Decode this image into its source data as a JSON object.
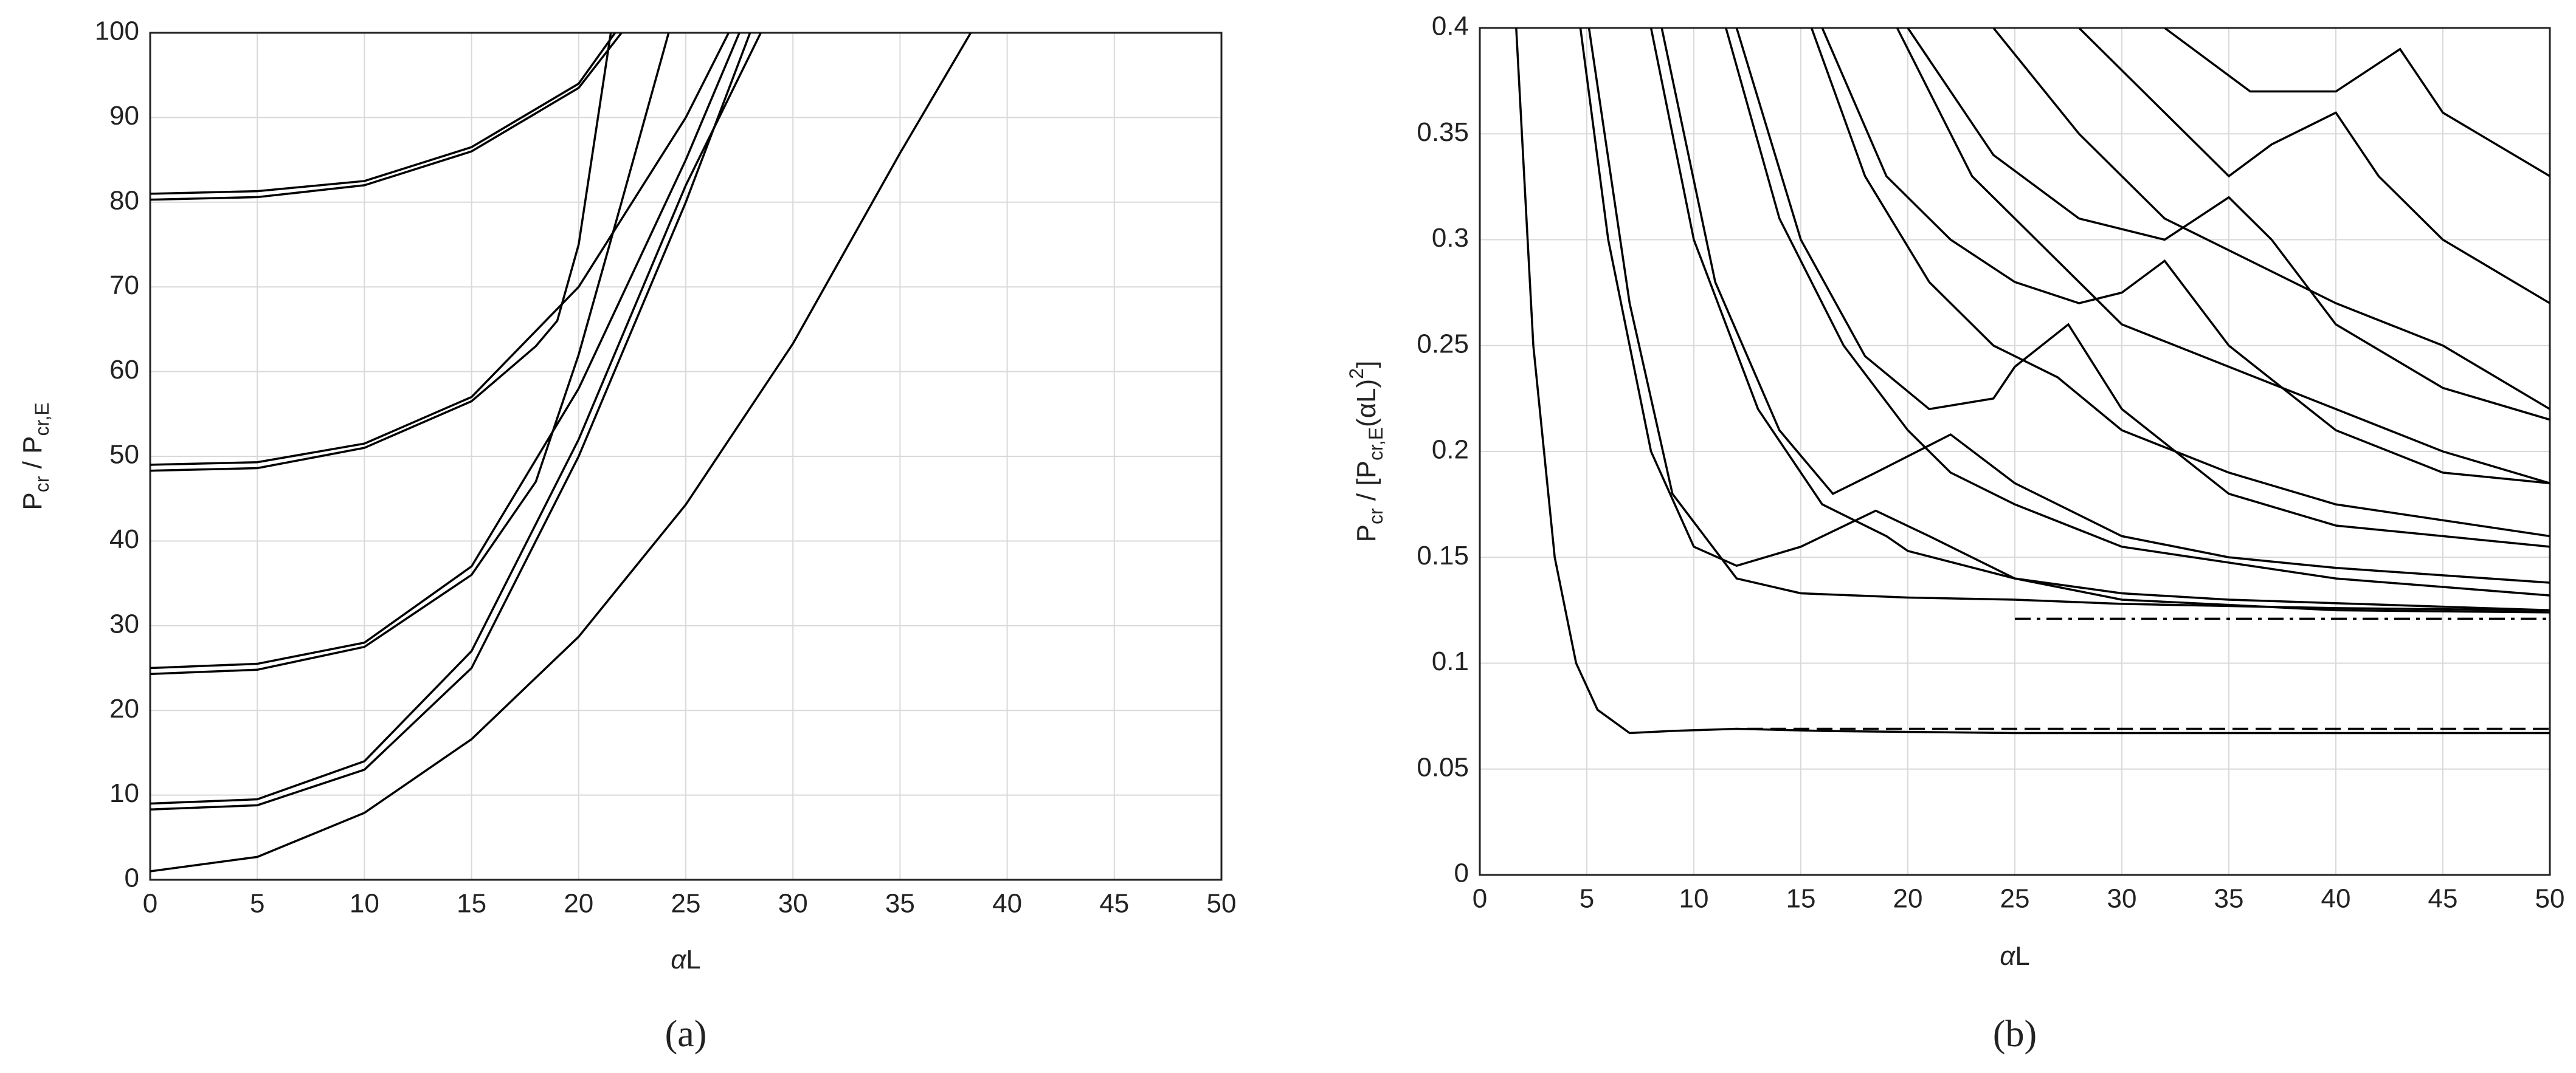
{
  "chart_data": [
    {
      "type": "line",
      "panel": "(a)",
      "xlabel_parts": [
        "α",
        "L"
      ],
      "ylabel_parts": [
        "P",
        "cr",
        " / P",
        "cr,E"
      ],
      "xlim": [
        0,
        50
      ],
      "ylim": [
        0,
        100
      ],
      "xticks": [
        0,
        5,
        10,
        15,
        20,
        25,
        30,
        35,
        40,
        45,
        50
      ],
      "yticks": [
        0,
        10,
        20,
        30,
        40,
        50,
        60,
        70,
        80,
        90,
        100
      ],
      "grid": true,
      "color": "#000000",
      "series": [
        {
          "x": [
            0,
            5,
            10,
            15,
            20,
            25,
            30,
            35,
            38.3
          ],
          "values": [
            1,
            2.7,
            7.9,
            16.6,
            28.7,
            44.3,
            63.3,
            85.8,
            100
          ]
        },
        {
          "x": [
            0,
            5,
            10,
            15,
            20,
            25,
            28.5
          ],
          "values": [
            9,
            9.5,
            14,
            27,
            52,
            82,
            100
          ]
        },
        {
          "x": [
            0,
            5,
            10,
            15,
            20,
            25,
            28
          ],
          "values": [
            8.3,
            8.8,
            13,
            25,
            50,
            80,
            100
          ]
        },
        {
          "x": [
            0,
            5,
            10,
            15,
            20,
            25,
            27.5
          ],
          "values": [
            25,
            25.5,
            28,
            37,
            58,
            85,
            100
          ]
        },
        {
          "x": [
            0,
            5,
            10,
            15,
            18,
            20,
            22,
            24.2
          ],
          "values": [
            24.3,
            24.8,
            27.5,
            36,
            47,
            62,
            80,
            100
          ]
        },
        {
          "x": [
            0,
            5,
            10,
            15,
            20,
            25,
            27
          ],
          "values": [
            49,
            49.3,
            51.5,
            57,
            70,
            90,
            100
          ]
        },
        {
          "x": [
            0,
            5,
            10,
            15,
            18,
            19,
            20,
            21.5
          ],
          "values": [
            48.3,
            48.6,
            51,
            56.5,
            63,
            66,
            75,
            100
          ]
        },
        {
          "x": [
            0,
            5,
            10,
            15,
            20,
            21.7
          ],
          "values": [
            81,
            81.3,
            82.5,
            86.5,
            94,
            100
          ]
        },
        {
          "x": [
            0,
            5,
            10,
            15,
            20,
            22
          ],
          "values": [
            80.3,
            80.6,
            82,
            86,
            93.5,
            100
          ]
        }
      ]
    },
    {
      "type": "line",
      "panel": "(b)",
      "xlabel_parts": [
        "α",
        "L"
      ],
      "ylabel_parts": [
        "P",
        "cr",
        " / [P",
        "cr,E",
        "(αL)",
        "2",
        "]"
      ],
      "xlim": [
        0,
        50
      ],
      "ylim": [
        0,
        0.4
      ],
      "xticks": [
        0,
        5,
        10,
        15,
        20,
        25,
        30,
        35,
        40,
        45,
        50
      ],
      "yticks": [
        0,
        0.05,
        0.1,
        0.15,
        0.2,
        0.25,
        0.3,
        0.35,
        0.4
      ],
      "grid": true,
      "color": "#000000",
      "series": [
        {
          "x": [
            1.7,
            2.5,
            3.5,
            4.5,
            5.5,
            7,
            9,
            12,
            16,
            25,
            35,
            50
          ],
          "values": [
            0.4,
            0.25,
            0.15,
            0.1,
            0.078,
            0.067,
            0.068,
            0.069,
            0.068,
            0.067,
            0.067,
            0.067
          ]
        },
        {
          "x": [
            4.7,
            6,
            8,
            10,
            12,
            15,
            18.5,
            21,
            25,
            30,
            40,
            50
          ],
          "values": [
            0.4,
            0.3,
            0.2,
            0.155,
            0.146,
            0.155,
            0.172,
            0.16,
            0.14,
            0.13,
            0.125,
            0.124
          ]
        },
        {
          "x": [
            5.1,
            7,
            9,
            12,
            15,
            20,
            25,
            30,
            40,
            50
          ],
          "values": [
            0.4,
            0.27,
            0.18,
            0.14,
            0.133,
            0.131,
            0.13,
            0.128,
            0.126,
            0.125
          ]
        },
        {
          "x": [
            8,
            10,
            13,
            16,
            19,
            20,
            25,
            30,
            35,
            50
          ],
          "values": [
            0.4,
            0.3,
            0.22,
            0.175,
            0.16,
            0.153,
            0.14,
            0.133,
            0.13,
            0.125
          ]
        },
        {
          "x": [
            8.5,
            11,
            14,
            16.5,
            18.5,
            22,
            25,
            30,
            35,
            40,
            50
          ],
          "values": [
            0.4,
            0.28,
            0.21,
            0.18,
            0.19,
            0.208,
            0.185,
            0.16,
            0.15,
            0.145,
            0.138
          ]
        },
        {
          "x": [
            11.5,
            14,
            17,
            20,
            22,
            25,
            30,
            40,
            50
          ],
          "values": [
            0.4,
            0.31,
            0.25,
            0.21,
            0.19,
            0.175,
            0.155,
            0.14,
            0.132
          ]
        },
        {
          "x": [
            12,
            15,
            18,
            21,
            24,
            25,
            27.5,
            30,
            35,
            40,
            50
          ],
          "values": [
            0.4,
            0.3,
            0.245,
            0.22,
            0.225,
            0.24,
            0.26,
            0.22,
            0.18,
            0.165,
            0.155
          ]
        },
        {
          "x": [
            15.5,
            18,
            21,
            24,
            27,
            30,
            35,
            40,
            50
          ],
          "values": [
            0.4,
            0.33,
            0.28,
            0.25,
            0.235,
            0.21,
            0.19,
            0.175,
            0.16
          ]
        },
        {
          "x": [
            16,
            19,
            22,
            25,
            28,
            30,
            32,
            35,
            40,
            45,
            50
          ],
          "values": [
            0.4,
            0.33,
            0.3,
            0.28,
            0.27,
            0.275,
            0.29,
            0.25,
            0.21,
            0.19,
            0.185
          ]
        },
        {
          "x": [
            19.5,
            23,
            27,
            30,
            35,
            40,
            45,
            50
          ],
          "values": [
            0.4,
            0.33,
            0.29,
            0.26,
            0.24,
            0.22,
            0.2,
            0.185
          ]
        },
        {
          "x": [
            20,
            24,
            28,
            32,
            35,
            37,
            40,
            45,
            50
          ],
          "values": [
            0.4,
            0.34,
            0.31,
            0.3,
            0.32,
            0.3,
            0.26,
            0.23,
            0.215
          ]
        },
        {
          "x": [
            24,
            28,
            32,
            36,
            40,
            45,
            50
          ],
          "values": [
            0.4,
            0.35,
            0.31,
            0.29,
            0.27,
            0.25,
            0.22
          ]
        },
        {
          "x": [
            28,
            32,
            35,
            37,
            40,
            42,
            45,
            50
          ],
          "values": [
            0.4,
            0.36,
            0.33,
            0.345,
            0.36,
            0.33,
            0.3,
            0.27
          ]
        },
        {
          "x": [
            32,
            36,
            40,
            43,
            45,
            50
          ],
          "values": [
            0.4,
            0.37,
            0.37,
            0.39,
            0.36,
            0.33
          ]
        },
        {
          "x": [
            12.5,
            50
          ],
          "values": [
            0.069,
            0.069
          ],
          "dash": "dashed"
        },
        {
          "x": [
            25,
            50
          ],
          "values": [
            0.121,
            0.121
          ],
          "dash": "dashdot"
        }
      ]
    }
  ]
}
